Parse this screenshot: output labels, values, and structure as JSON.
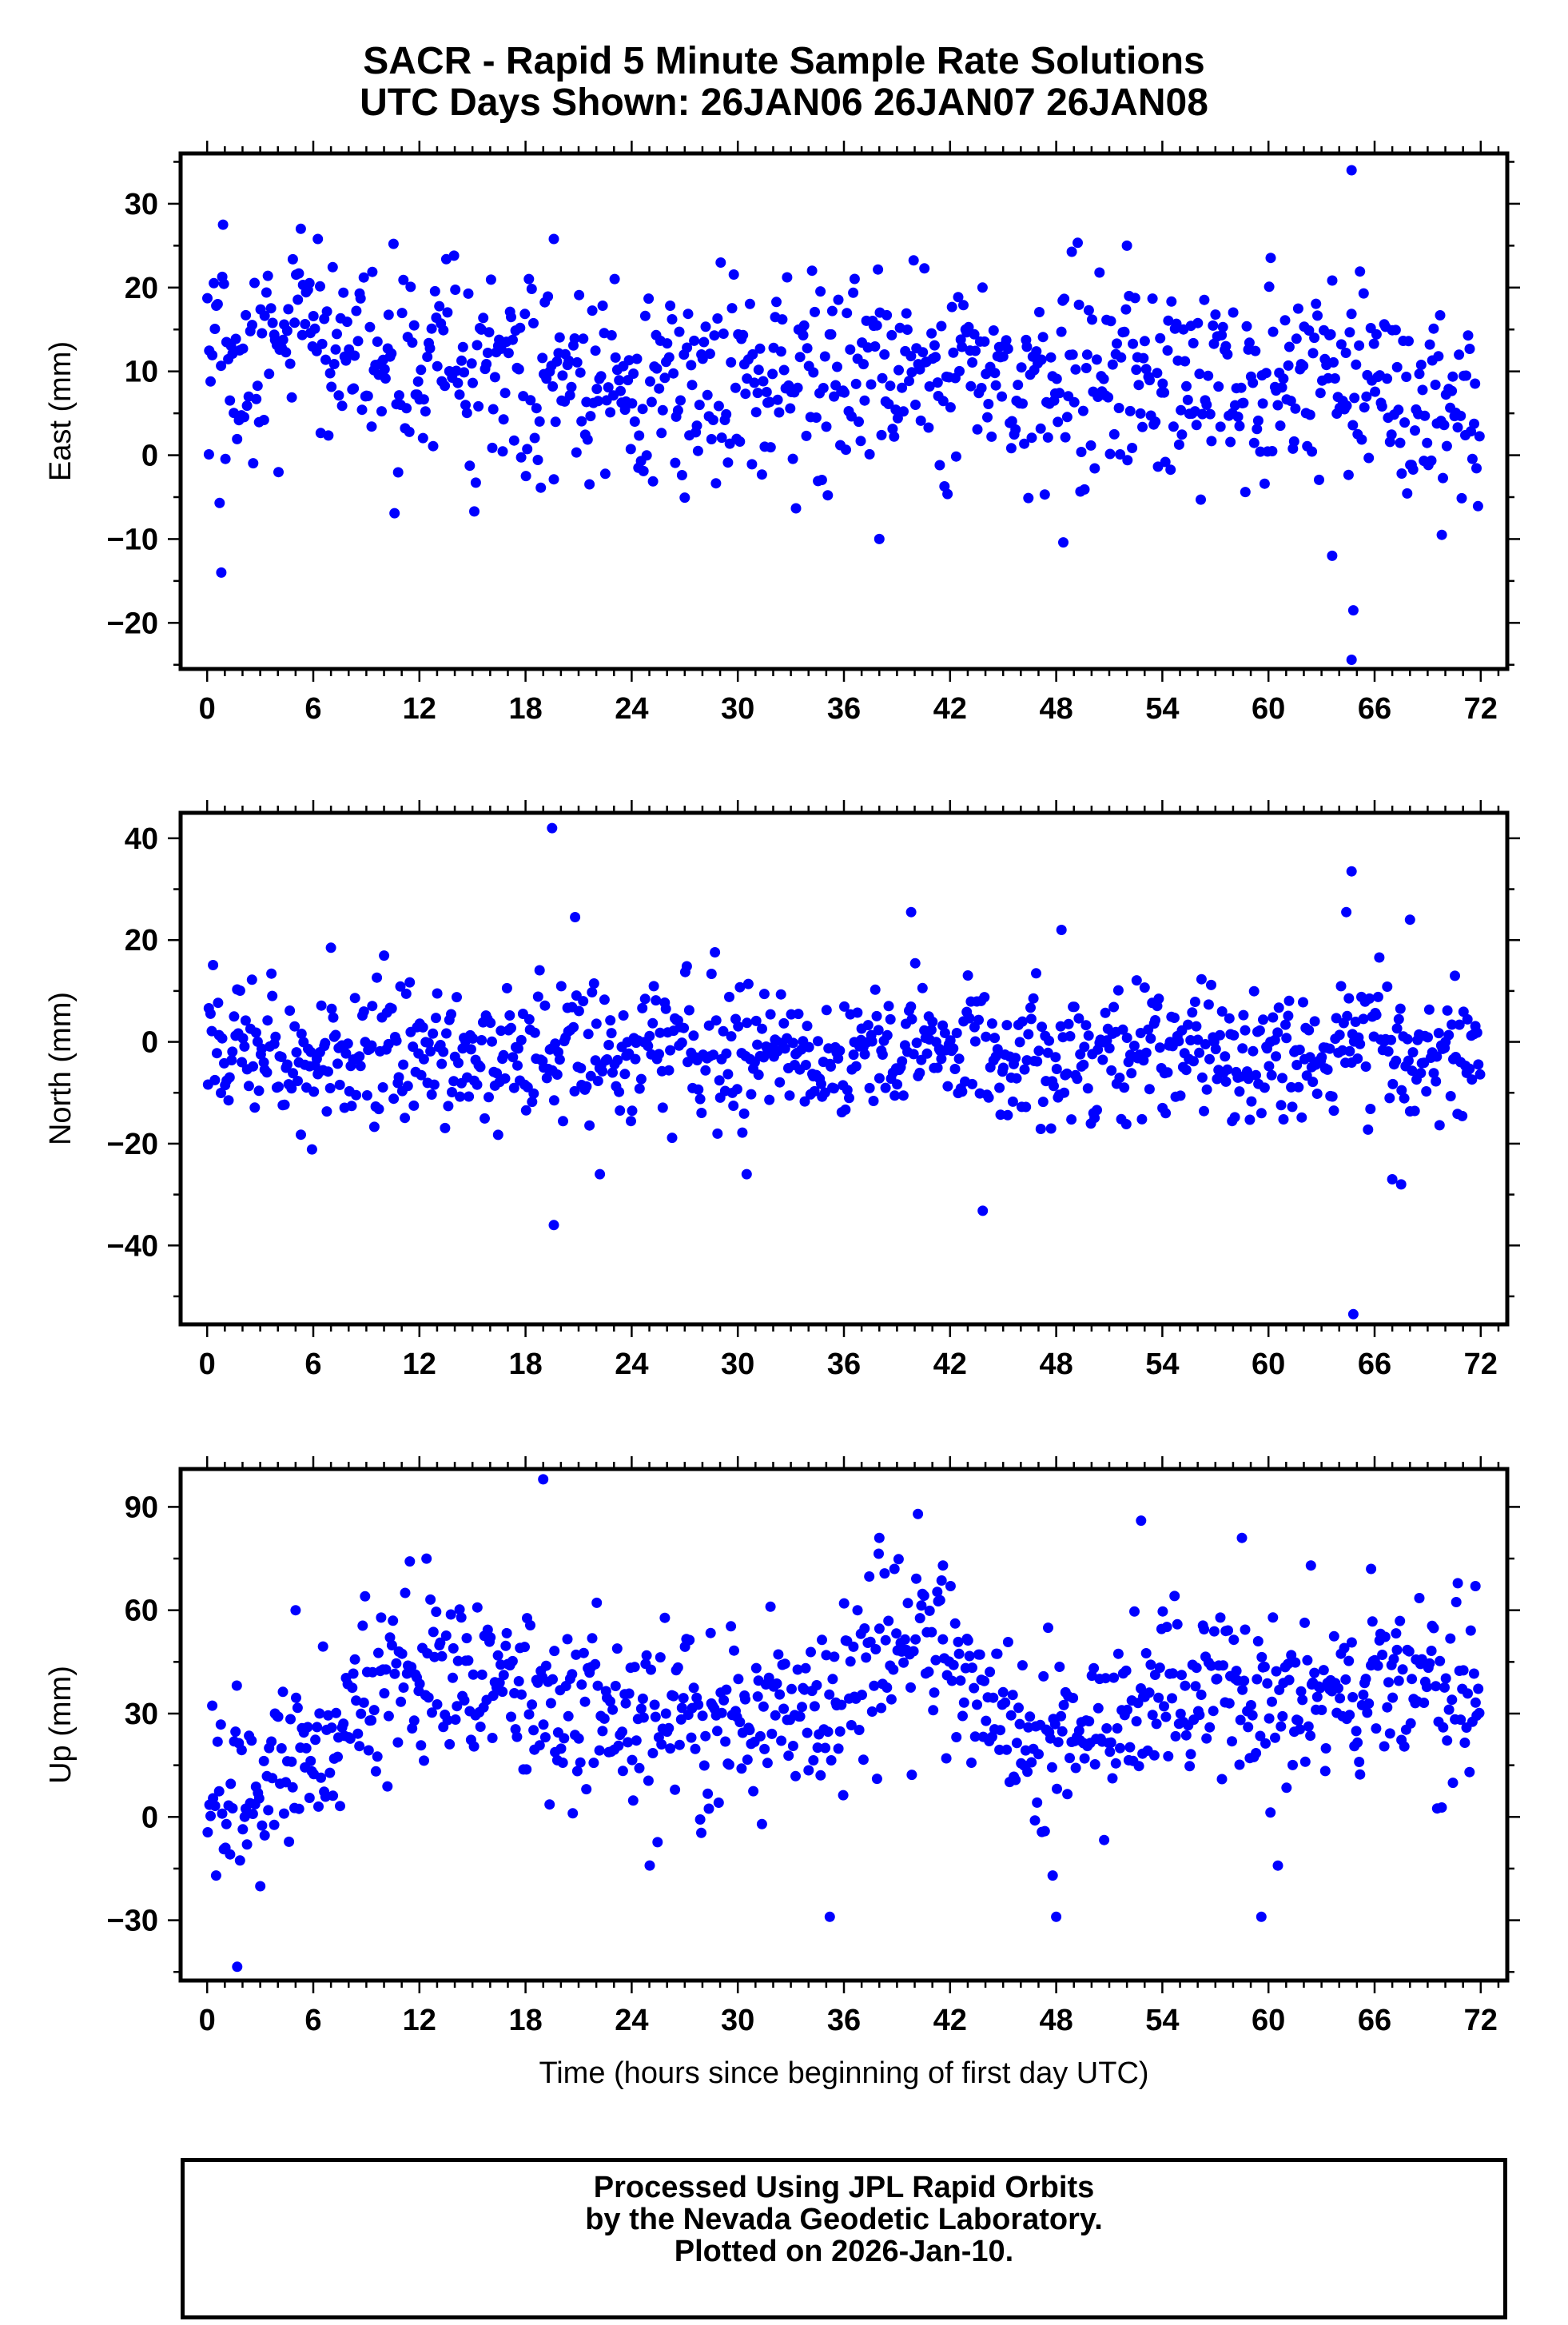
{
  "title": {
    "line1": "SACR - Rapid 5 Minute Sample Rate Solutions",
    "line2": "UTC Days Shown:  26JAN06 26JAN07 26JAN08"
  },
  "x_axis_label": "Time (hours since beginning of first day UTC)",
  "footer": {
    "line1": "Processed Using JPL Rapid Orbits",
    "line2": "by the Nevada Geodetic Laboratory.",
    "line3": "Plotted on 2026-Jan-10."
  },
  "colors": {
    "points": "#0000ff",
    "frame": "#000000"
  },
  "chart_data": [
    {
      "type": "scatter",
      "ylabel": "East (mm)",
      "xlim": [
        -1.5,
        73.5
      ],
      "ylim": [
        -25.5,
        36
      ],
      "xticks": [
        0,
        6,
        12,
        18,
        24,
        30,
        36,
        42,
        48,
        54,
        60,
        66,
        72
      ],
      "yticks": [
        -20,
        -10,
        0,
        10,
        20,
        30
      ],
      "approx_noise_sd": 6,
      "trend": [
        [
          0,
          11
        ],
        [
          6,
          13
        ],
        [
          12,
          10
        ],
        [
          18,
          9
        ],
        [
          24,
          8
        ],
        [
          30,
          8
        ],
        [
          36,
          10
        ],
        [
          42,
          11
        ],
        [
          48,
          9
        ],
        [
          54,
          9
        ],
        [
          60,
          9
        ],
        [
          66,
          10
        ],
        [
          72,
          1
        ]
      ],
      "outliers": [
        [
          0.1,
          0.1
        ],
        [
          0.8,
          -14
        ],
        [
          0.9,
          27.5
        ],
        [
          19.6,
          25.8
        ],
        [
          38,
          -10
        ],
        [
          48.4,
          -10.4
        ],
        [
          52,
          25
        ],
        [
          63.6,
          -12
        ],
        [
          64.7,
          34
        ],
        [
          64.7,
          -24.4
        ],
        [
          64.8,
          -18.5
        ],
        [
          69.8,
          -9.5
        ]
      ]
    },
    {
      "type": "scatter",
      "ylabel": "North (mm)",
      "xlim": [
        -1.5,
        73.5
      ],
      "ylim": [
        -55.5,
        45
      ],
      "xticks": [
        0,
        6,
        12,
        18,
        24,
        30,
        36,
        42,
        48,
        54,
        60,
        66,
        72
      ],
      "yticks": [
        -40,
        -20,
        0,
        20,
        40
      ],
      "approx_noise_sd": 6.5,
      "trend": [
        [
          0,
          -1
        ],
        [
          12,
          -2
        ],
        [
          24,
          -1
        ],
        [
          36,
          -2
        ],
        [
          48,
          -2
        ],
        [
          60,
          -2
        ],
        [
          72,
          -2
        ]
      ],
      "outliers": [
        [
          7,
          18.5
        ],
        [
          19.5,
          42
        ],
        [
          19.6,
          -36
        ],
        [
          20.8,
          24.5
        ],
        [
          22.2,
          -26
        ],
        [
          30.5,
          -26
        ],
        [
          39.8,
          25.5
        ],
        [
          48.3,
          22
        ],
        [
          64.4,
          25.5
        ],
        [
          64.7,
          33.5
        ],
        [
          64.8,
          -53.5
        ],
        [
          67,
          -27
        ],
        [
          67.5,
          -28
        ],
        [
          68,
          24
        ]
      ]
    },
    {
      "type": "scatter",
      "ylabel": "Up (mm)",
      "xlim": [
        -1.5,
        73.5
      ],
      "ylim": [
        -47.5,
        101
      ],
      "xticks": [
        0,
        6,
        12,
        18,
        24,
        30,
        36,
        42,
        48,
        54,
        60,
        66,
        72
      ],
      "yticks": [
        -30,
        0,
        30,
        60,
        90
      ],
      "approx_noise_sd": 13,
      "trend": [
        [
          0,
          3
        ],
        [
          6,
          18
        ],
        [
          9,
          38
        ],
        [
          14,
          42
        ],
        [
          18,
          38
        ],
        [
          24,
          24
        ],
        [
          30,
          28
        ],
        [
          36,
          35
        ],
        [
          40,
          55
        ],
        [
          42,
          45
        ],
        [
          45,
          27
        ],
        [
          48,
          18
        ],
        [
          54,
          35
        ],
        [
          60,
          28
        ],
        [
          66,
          38
        ],
        [
          72,
          35
        ]
      ],
      "outliers": [
        [
          1.7,
          -43.5
        ],
        [
          5,
          60
        ],
        [
          12.4,
          75
        ],
        [
          19,
          98
        ],
        [
          35.2,
          -29
        ],
        [
          38,
          81
        ],
        [
          41.6,
          73
        ],
        [
          47.8,
          -17
        ],
        [
          48,
          -29
        ],
        [
          52.8,
          86
        ],
        [
          58.5,
          81
        ],
        [
          59.6,
          -29
        ],
        [
          62.4,
          73
        ],
        [
          65.8,
          72
        ],
        [
          71.7,
          67
        ]
      ]
    }
  ]
}
